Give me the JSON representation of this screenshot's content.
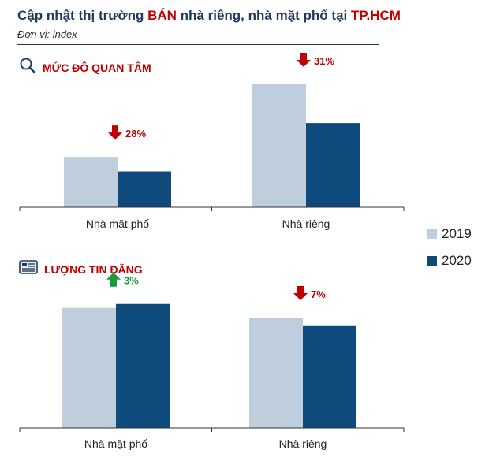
{
  "header": {
    "title_pre": "Cập nhật thị trường ",
    "title_highlight": "BÁN",
    "title_mid": " nhà riêng, nhà mặt phố tại ",
    "title_city": "TP.HCM",
    "unit": "Đơn vị: index"
  },
  "sections": {
    "interest_label": "MỨC ĐỘ QUAN TÂM",
    "listings_label": "LƯỢNG TIN ĐĂNG"
  },
  "legend": [
    "2019",
    "2020"
  ],
  "colors": {
    "y2019": "#bfcedd",
    "y2020": "#0f4a7c",
    "down": "#c00000",
    "up": "#1a9a3a",
    "accent": "#c00000",
    "navy": "#1f3a5c"
  },
  "chart_data": [
    {
      "type": "bar",
      "title": "MỨC ĐỘ QUAN TÂM",
      "categories": [
        "Nhà mặt phố",
        "Nhà riêng"
      ],
      "series": [
        {
          "name": "2019",
          "values": [
            52,
            127
          ]
        },
        {
          "name": "2020",
          "values": [
            37,
            87
          ]
        }
      ],
      "changes": [
        {
          "text": "28%",
          "direction": "down"
        },
        {
          "text": "31%",
          "direction": "down"
        }
      ],
      "ylim": [
        0,
        140
      ]
    },
    {
      "type": "bar",
      "title": "LƯỢNG TIN ĐĂNG",
      "categories": [
        "Nhà mặt phố",
        "Nhà riêng"
      ],
      "series": [
        {
          "name": "2019",
          "values": [
            124,
            114
          ]
        },
        {
          "name": "2020",
          "values": [
            128,
            106
          ]
        }
      ],
      "changes": [
        {
          "text": "3%",
          "direction": "up"
        },
        {
          "text": "7%",
          "direction": "down"
        }
      ],
      "ylim": [
        0,
        140
      ]
    }
  ]
}
